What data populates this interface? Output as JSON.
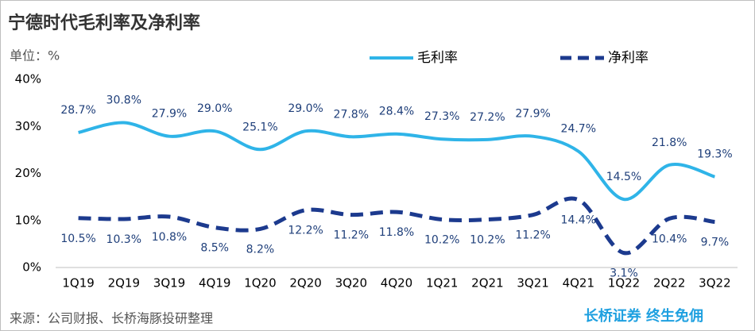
{
  "chart_data": {
    "type": "line",
    "title": "宁德时代毛利率及净利率",
    "unit_label": "单位：%",
    "source": "来源：公司财报、长桥海豚投研整理",
    "brand": "长桥证券 终生免佣",
    "categories": [
      "1Q19",
      "2Q19",
      "3Q19",
      "4Q19",
      "1Q20",
      "2Q20",
      "3Q20",
      "4Q20",
      "1Q21",
      "2Q21",
      "3Q21",
      "4Q21",
      "1Q22",
      "2Q22",
      "3Q22"
    ],
    "series": [
      {
        "name": "毛利率",
        "color": "#2fb4e8",
        "dash": false,
        "values": [
          28.7,
          30.8,
          27.9,
          29.0,
          25.1,
          29.0,
          27.8,
          28.4,
          27.3,
          27.2,
          27.9,
          24.7,
          14.5,
          21.8,
          19.3
        ],
        "value_labels": [
          "28.7%",
          "30.8%",
          "27.9%",
          "29.0%",
          "25.1%",
          "29.0%",
          "27.8%",
          "28.4%",
          "27.3%",
          "27.2%",
          "27.9%",
          "24.7%",
          "14.5%",
          "21.8%",
          "19.3%"
        ]
      },
      {
        "name": "净利率",
        "color": "#1c3a8e",
        "dash": true,
        "values": [
          10.5,
          10.3,
          10.8,
          8.5,
          8.2,
          12.2,
          11.2,
          11.8,
          10.2,
          10.2,
          11.2,
          14.4,
          3.1,
          10.4,
          9.7
        ],
        "value_labels": [
          "10.5%",
          "10.3%",
          "10.8%",
          "8.5%",
          "8.2%",
          "12.2%",
          "11.2%",
          "11.8%",
          "10.2%",
          "10.2%",
          "11.2%",
          "14.4%",
          "3.1%",
          "10.4%",
          "9.7%"
        ]
      }
    ],
    "ylim": [
      0,
      40
    ],
    "yticks": [
      {
        "value": 0,
        "label": "0%"
      },
      {
        "value": 10,
        "label": "10%"
      },
      {
        "value": 20,
        "label": "20%"
      },
      {
        "value": 30,
        "label": "30%"
      },
      {
        "value": 40,
        "label": "40%"
      }
    ],
    "grid": false,
    "legend": "top-right"
  }
}
